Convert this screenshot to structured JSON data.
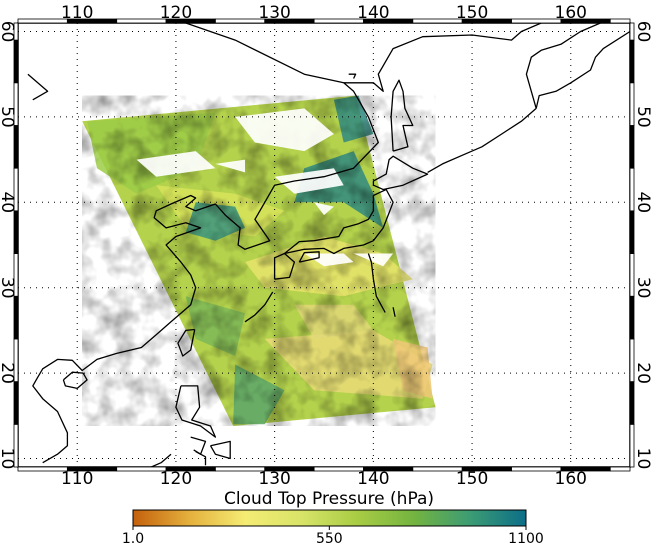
{
  "map": {
    "lon_range": [
      104,
      166
    ],
    "lat_range": [
      9,
      61
    ],
    "lon_ticks": [
      110,
      120,
      130,
      140,
      150,
      160
    ],
    "lat_ticks": [
      10,
      20,
      30,
      40,
      50,
      60
    ],
    "lon_labels": [
      "110",
      "120",
      "130",
      "140",
      "150",
      "160"
    ],
    "lat_labels": [
      "10",
      "20",
      "30",
      "40",
      "50",
      "60"
    ],
    "grid": true,
    "grid_style": "dotted",
    "coastline_color": "#000000",
    "no_data_color": "#ffffff"
  },
  "colorbar": {
    "title": "Cloud Top Pressure (hPa)",
    "tick_labels": [
      "1.0",
      "550",
      "1100"
    ],
    "tick_values": [
      1.0,
      550,
      1100
    ],
    "colors": [
      "#c4600c",
      "#e4b03c",
      "#f4ec74",
      "#d8e468",
      "#a8cc44",
      "#74b440",
      "#3c9c74",
      "#0c6e88"
    ]
  },
  "swath": {
    "corners": [
      [
        110.5,
        49.5
      ],
      [
        138.2,
        52.5
      ],
      [
        146.3,
        16.0
      ],
      [
        125.8,
        13.8
      ]
    ]
  }
}
